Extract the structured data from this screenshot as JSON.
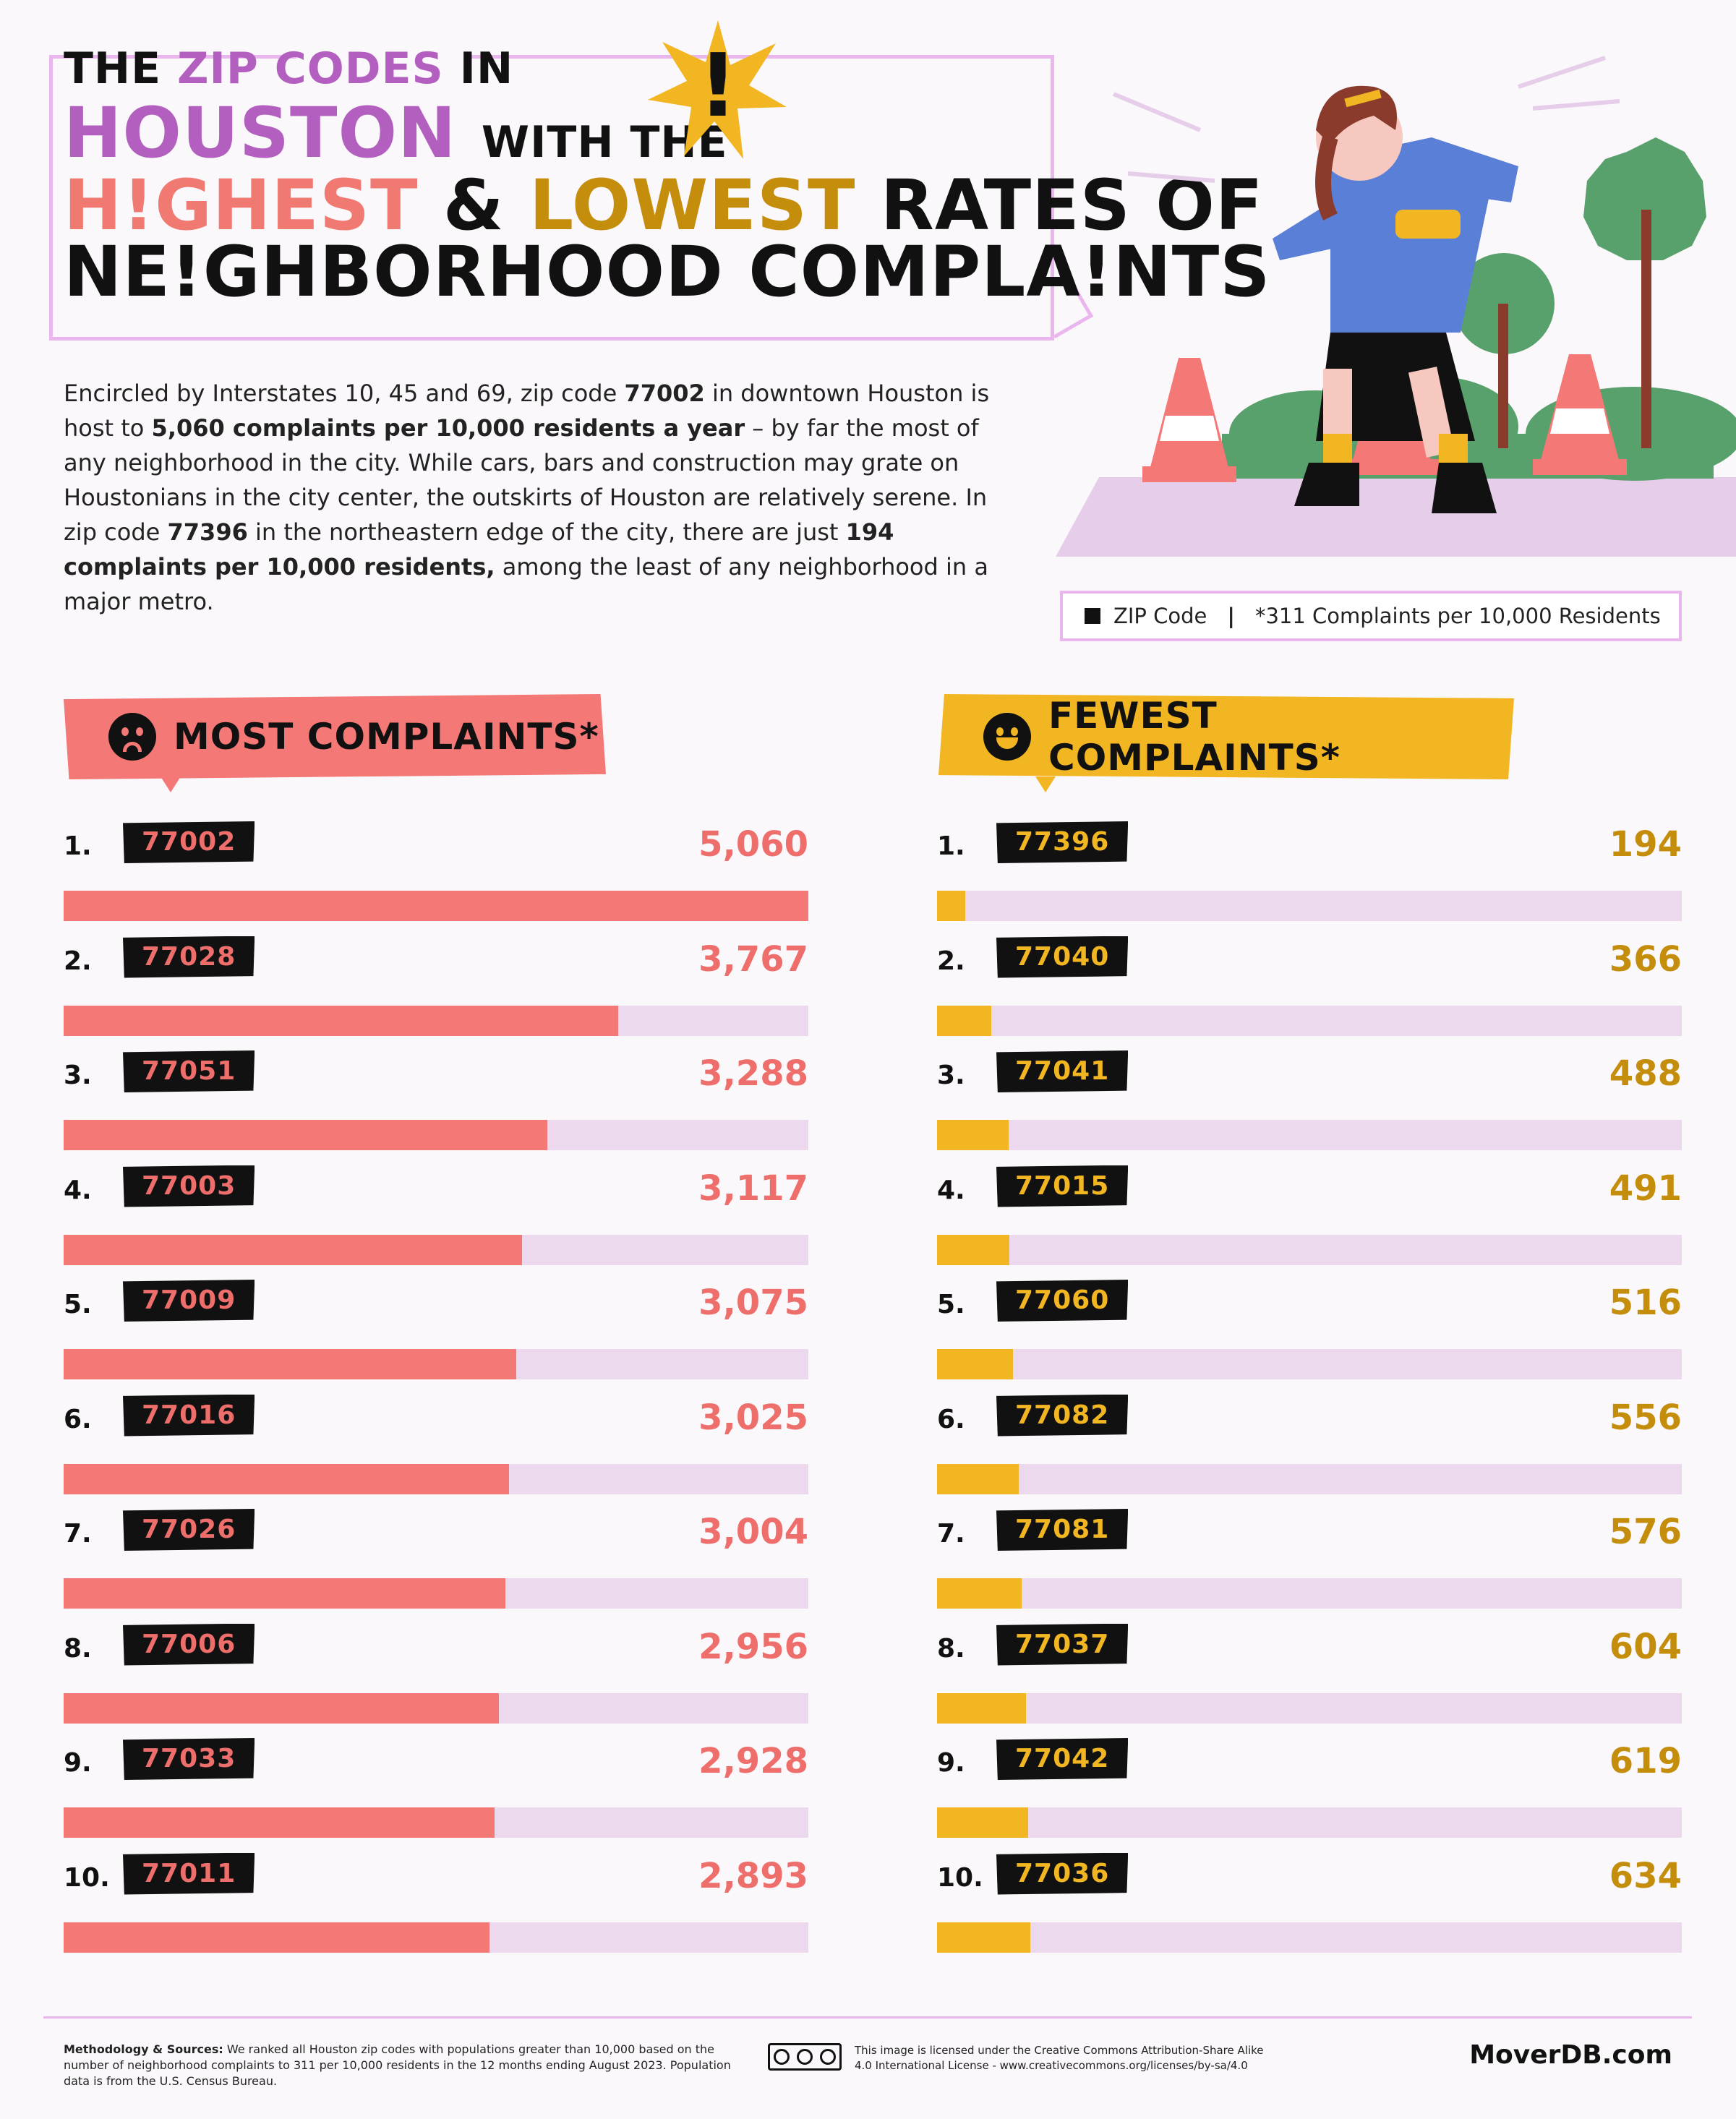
{
  "title": {
    "line1": [
      "THE",
      "ZIP CODES",
      "IN"
    ],
    "line2": [
      "HOUSTON",
      "WITH THE"
    ],
    "line3": [
      "H!GHEST",
      "&",
      "LOWEST",
      "RATES OF"
    ],
    "line4": "NE!GHBORHOOD COMPLA!NTS",
    "exclaim": "!"
  },
  "intro": {
    "p1": "Encircled by Interstates 10, 45 and 69, zip code ",
    "b1": "77002",
    "p2": " in downtown Houston is host to ",
    "b2": "5,060 complaints per 10,000 residents a year",
    "p3": " – by far the most of any neighborhood in the city. While cars, bars and construction may grate on Houstonians in the city center, the outskirts of Houston are relatively serene. In zip code ",
    "b3": "77396",
    "p4": " in the northeastern edge of the city, there are just ",
    "b4": "194 complaints per 10,000 residents,",
    "p5": " among the least of any neighborhood in a major metro."
  },
  "legend": {
    "zip_label": "ZIP Code",
    "separator": "|",
    "value_label": "*311 Complaints per 10,000 Residents"
  },
  "colors": {
    "most": "#f47876",
    "fewest": "#f2b623",
    "track": "#ecd9ee",
    "accent_purple": "#b35fc0",
    "accent_gold": "#c58d0c"
  },
  "chart_data": [
    {
      "type": "bar",
      "title": "MOST COMPLAINTS*",
      "ranks": [
        "1.",
        "2.",
        "3.",
        "4.",
        "5.",
        "6.",
        "7.",
        "8.",
        "9.",
        "10."
      ],
      "categories": [
        "77002",
        "77028",
        "77051",
        "77003",
        "77009",
        "77016",
        "77026",
        "77006",
        "77033",
        "77011"
      ],
      "values": [
        5060,
        3767,
        3288,
        3117,
        3075,
        3025,
        3004,
        2956,
        2928,
        2893
      ],
      "labels": [
        "5,060",
        "3,767",
        "3,288",
        "3,117",
        "3,075",
        "3,025",
        "3,004",
        "2,956",
        "2,928",
        "2,893"
      ],
      "xlim": [
        0,
        5060
      ],
      "orientation": "horizontal"
    },
    {
      "type": "bar",
      "title": "FEWEST COMPLAINTS*",
      "ranks": [
        "1.",
        "2.",
        "3.",
        "4.",
        "5.",
        "6.",
        "7.",
        "8.",
        "9.",
        "10."
      ],
      "categories": [
        "77396",
        "77040",
        "77041",
        "77015",
        "77060",
        "77082",
        "77081",
        "77037",
        "77042",
        "77036"
      ],
      "values": [
        194,
        366,
        488,
        491,
        516,
        556,
        576,
        604,
        619,
        634
      ],
      "labels": [
        "194",
        "366",
        "488",
        "491",
        "516",
        "556",
        "576",
        "604",
        "619",
        "634"
      ],
      "xlim": [
        0,
        5060
      ],
      "orientation": "horizontal"
    }
  ],
  "footer": {
    "method_label": "Methodology & Sources:",
    "method_text": " We ranked all Houston zip codes with populations greater than 10,000 based on the number of neighborhood complaints to 311 per 10,000 residents in the 12 months ending August 2023. Population data is from the U.S. Census Bureau.",
    "license_text": "This image is licensed under the Creative Commons Attribution-Share Alike 4.0 International License - www.creativecommons.org/licenses/by-sa/4.0",
    "brand": "MoverDB.com"
  }
}
